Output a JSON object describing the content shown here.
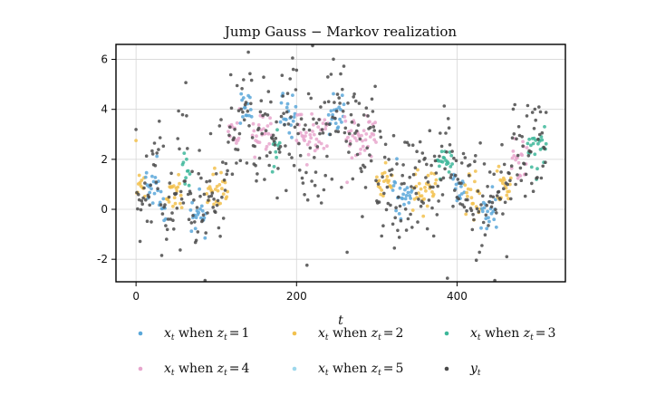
{
  "chart_data": {
    "type": "scatter",
    "title": "Jump Gauss − Markov realization",
    "xlabel": "t",
    "ylabel": "",
    "xlim": [
      -25,
      535
    ],
    "ylim": [
      -2.9,
      6.6
    ],
    "x_ticks": [
      0,
      200,
      400
    ],
    "x_tick_labels": [
      "0",
      "200",
      "400"
    ],
    "y_ticks": [
      -2,
      0,
      2,
      4,
      6
    ],
    "y_tick_labels": [
      "-2",
      "0",
      "2",
      "4",
      "6"
    ],
    "grid": true,
    "legend_position": "bottom",
    "segments": [
      {
        "start": 0,
        "end": 12,
        "state": 2,
        "mean": 1.0
      },
      {
        "start": 12,
        "end": 30,
        "state": 1,
        "mean": 1.1
      },
      {
        "start": 30,
        "end": 38,
        "state": 1,
        "mean": -0.1
      },
      {
        "start": 38,
        "end": 58,
        "state": 2,
        "mean": 0.6
      },
      {
        "start": 58,
        "end": 68,
        "state": 3,
        "mean": 1.5
      },
      {
        "start": 68,
        "end": 88,
        "state": 1,
        "mean": -0.3
      },
      {
        "start": 88,
        "end": 115,
        "state": 2,
        "mean": 0.6
      },
      {
        "start": 115,
        "end": 130,
        "state": 4,
        "mean": 3.2
      },
      {
        "start": 130,
        "end": 145,
        "state": 1,
        "mean": 4.1
      },
      {
        "start": 145,
        "end": 170,
        "state": 4,
        "mean": 3.1
      },
      {
        "start": 170,
        "end": 180,
        "state": 3,
        "mean": 2.4
      },
      {
        "start": 180,
        "end": 200,
        "state": 1,
        "mean": 3.9
      },
      {
        "start": 200,
        "end": 240,
        "state": 4,
        "mean": 3.0
      },
      {
        "start": 240,
        "end": 260,
        "state": 1,
        "mean": 3.8
      },
      {
        "start": 260,
        "end": 300,
        "state": 4,
        "mean": 3.0
      },
      {
        "start": 300,
        "end": 320,
        "state": 2,
        "mean": 1.0
      },
      {
        "start": 320,
        "end": 345,
        "state": 1,
        "mean": 0.6
      },
      {
        "start": 345,
        "end": 375,
        "state": 2,
        "mean": 0.8
      },
      {
        "start": 375,
        "end": 395,
        "state": 3,
        "mean": 2.0
      },
      {
        "start": 395,
        "end": 410,
        "state": 1,
        "mean": 0.8
      },
      {
        "start": 410,
        "end": 430,
        "state": 2,
        "mean": 0.6
      },
      {
        "start": 430,
        "end": 450,
        "state": 1,
        "mean": 0.0
      },
      {
        "start": 450,
        "end": 468,
        "state": 2,
        "mean": 1.0
      },
      {
        "start": 468,
        "end": 488,
        "state": 4,
        "mean": 2.0
      },
      {
        "start": 488,
        "end": 512,
        "state": 3,
        "mean": 2.3
      }
    ],
    "noise": {
      "x_std": 0.45,
      "y_std": 1.15,
      "seed": 7
    },
    "series": [
      {
        "name": "x_t when z_t = 1",
        "state": 1,
        "color": "#5AA7D9"
      },
      {
        "name": "x_t when z_t = 2",
        "state": 2,
        "color": "#F2C14E"
      },
      {
        "name": "x_t when z_t = 3",
        "state": 3,
        "color": "#3DB79A"
      },
      {
        "name": "x_t when z_t = 4",
        "state": 4,
        "color": "#E7A6CD"
      },
      {
        "name": "x_t when z_t = 5",
        "state": 5,
        "color": "#9ED8EC"
      },
      {
        "name": "y_t",
        "state": 0,
        "color": "#4a4a4a"
      }
    ]
  },
  "legend": {
    "items": [
      {
        "var": "x",
        "sub": "t",
        "when": "when",
        "cond_var": "z",
        "cond_sub": "t",
        "eq": "=",
        "value": "1",
        "color": "#5AA7D9"
      },
      {
        "var": "x",
        "sub": "t",
        "when": "when",
        "cond_var": "z",
        "cond_sub": "t",
        "eq": "=",
        "value": "2",
        "color": "#F2C14E"
      },
      {
        "var": "x",
        "sub": "t",
        "when": "when",
        "cond_var": "z",
        "cond_sub": "t",
        "eq": "=",
        "value": "3",
        "color": "#3DB79A"
      },
      {
        "var": "x",
        "sub": "t",
        "when": "when",
        "cond_var": "z",
        "cond_sub": "t",
        "eq": "=",
        "value": "4",
        "color": "#E7A6CD"
      },
      {
        "var": "x",
        "sub": "t",
        "when": "when",
        "cond_var": "z",
        "cond_sub": "t",
        "eq": "=",
        "value": "5",
        "color": "#9ED8EC"
      },
      {
        "var": "y",
        "sub": "t",
        "when": "",
        "cond_var": "",
        "cond_sub": "",
        "eq": "",
        "value": "",
        "color": "#4a4a4a"
      }
    ]
  }
}
